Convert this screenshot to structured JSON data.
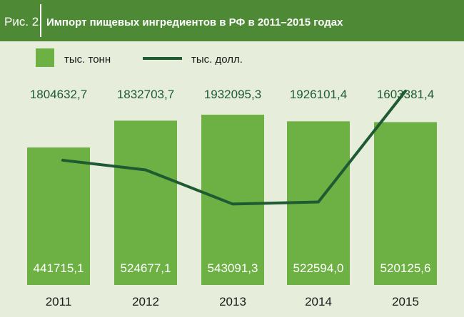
{
  "figure": {
    "label": "Рис. 2.",
    "title": "Импорт пищевых ингредиентов в РФ в 2011–2015 годах"
  },
  "chart_data": {
    "type": "bar",
    "categories": [
      "2011",
      "2012",
      "2013",
      "2014",
      "2015"
    ],
    "series": [
      {
        "name": "тыс. тонн",
        "type": "bar",
        "values": [
          441715.1,
          524677.1,
          543091.3,
          522594.0,
          520125.6
        ],
        "labels": [
          "441715,1",
          "524677,1",
          "543091,3",
          "522594,0",
          "520125,6"
        ]
      },
      {
        "name": "тыс. долл.",
        "type": "line",
        "values": [
          1804632.7,
          1832703.7,
          1932095.3,
          1926101.4,
          1603381.4
        ],
        "labels": [
          "1804632,7",
          "1832703,7",
          "1932095,3",
          "1926101,4",
          "1603381,4"
        ]
      }
    ],
    "legend_position": "top-left",
    "grid": false,
    "colors": {
      "background": "#e6eedb",
      "header": "#4e8a35",
      "bar": "#6db043",
      "line": "#1e5b33",
      "label_dark": "#1e5b33",
      "label_light": "#ffffff"
    }
  }
}
